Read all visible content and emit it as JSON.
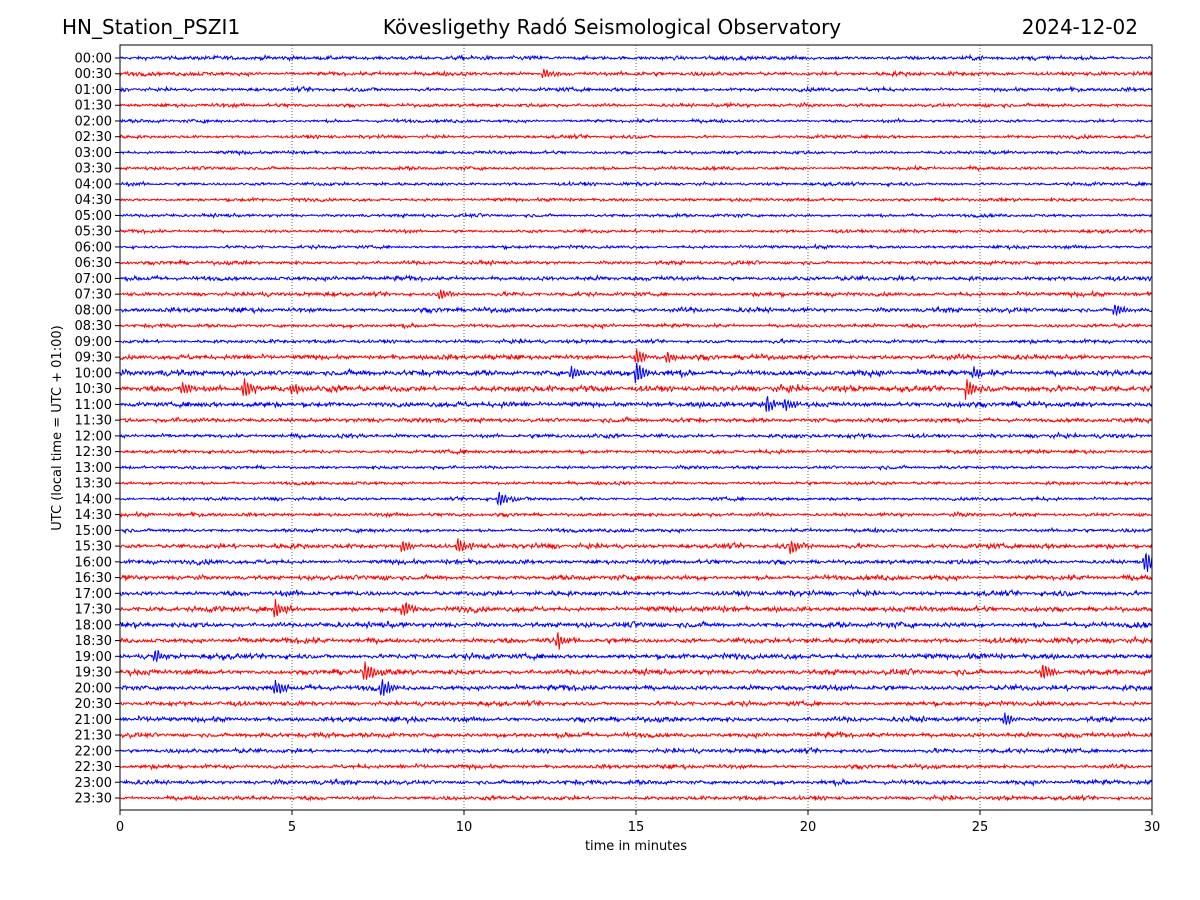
{
  "chart_data": {
    "type": "line",
    "title_left": "HN_Station_PSZI1",
    "title": "Kövesligethy Radó Seismological Observatory",
    "title_right": "2024-12-02",
    "xlabel": "time in minutes",
    "ylabel": "UTC (local time = UTC + 01:00)",
    "xlim": [
      0,
      30
    ],
    "xticks": [
      "0",
      "5",
      "10",
      "15",
      "20",
      "25",
      "30"
    ],
    "grid": "vertical dotted at x ticks",
    "colors": [
      "#0000ff",
      "#ff0000"
    ],
    "rows": [
      "00:00",
      "00:30",
      "01:00",
      "01:30",
      "02:00",
      "02:30",
      "03:00",
      "03:30",
      "04:00",
      "04:30",
      "05:00",
      "05:30",
      "06:00",
      "06:30",
      "07:00",
      "07:30",
      "08:00",
      "08:30",
      "09:00",
      "09:30",
      "10:00",
      "10:30",
      "11:00",
      "11:30",
      "12:00",
      "12:30",
      "13:00",
      "13:30",
      "14:00",
      "14:30",
      "15:00",
      "15:30",
      "16:00",
      "16:30",
      "17:00",
      "17:30",
      "18:00",
      "18:30",
      "19:00",
      "19:30",
      "20:00",
      "20:30",
      "21:00",
      "21:30",
      "22:00",
      "22:30",
      "23:00",
      "23:30"
    ],
    "noise_level": [
      1,
      1,
      0.9,
      0.9,
      0.8,
      0.8,
      0.8,
      0.8,
      0.8,
      0.8,
      0.8,
      0.8,
      0.8,
      0.9,
      1.1,
      1,
      1.1,
      0.9,
      0.9,
      1.2,
      1.4,
      1.5,
      1.3,
      1.1,
      1,
      0.9,
      0.8,
      0.8,
      0.8,
      0.9,
      0.9,
      1.2,
      1.1,
      1.2,
      1.2,
      1.3,
      1.3,
      1.3,
      1.3,
      1.3,
      1.3,
      1.1,
      1.2,
      1.2,
      1.1,
      1,
      1.1,
      1
    ],
    "events": [
      {
        "row": 1,
        "minute": 12.3,
        "amplitude": 2
      },
      {
        "row": 15,
        "minute": 9.3,
        "amplitude": 2
      },
      {
        "row": 16,
        "minute": 28.9,
        "amplitude": 2.5
      },
      {
        "row": 19,
        "minute": 15,
        "amplitude": 3
      },
      {
        "row": 19,
        "minute": 15.9,
        "amplitude": 2
      },
      {
        "row": 20,
        "minute": 15,
        "amplitude": 4.5
      },
      {
        "row": 20,
        "minute": 13.1,
        "amplitude": 2.5
      },
      {
        "row": 20,
        "minute": 24.8,
        "amplitude": 2.5
      },
      {
        "row": 21,
        "minute": 3.6,
        "amplitude": 4
      },
      {
        "row": 21,
        "minute": 24.6,
        "amplitude": 4
      },
      {
        "row": 21,
        "minute": 1.8,
        "amplitude": 2.5
      },
      {
        "row": 21,
        "minute": 5,
        "amplitude": 2.5
      },
      {
        "row": 22,
        "minute": 18.8,
        "amplitude": 3
      },
      {
        "row": 22,
        "minute": 19.3,
        "amplitude": 3
      },
      {
        "row": 28,
        "minute": 11,
        "amplitude": 3
      },
      {
        "row": 31,
        "minute": 9.8,
        "amplitude": 3
      },
      {
        "row": 31,
        "minute": 8.2,
        "amplitude": 2.5
      },
      {
        "row": 31,
        "minute": 19.5,
        "amplitude": 2.5
      },
      {
        "row": 32,
        "minute": 29.8,
        "amplitude": 4
      },
      {
        "row": 35,
        "minute": 4.5,
        "amplitude": 3.5
      },
      {
        "row": 35,
        "minute": 8.2,
        "amplitude": 3
      },
      {
        "row": 37,
        "minute": 12.7,
        "amplitude": 3
      },
      {
        "row": 38,
        "minute": 1,
        "amplitude": 3
      },
      {
        "row": 39,
        "minute": 7.1,
        "amplitude": 4
      },
      {
        "row": 39,
        "minute": 26.8,
        "amplitude": 3.5
      },
      {
        "row": 40,
        "minute": 7.6,
        "amplitude": 3.5
      },
      {
        "row": 40,
        "minute": 4.5,
        "amplitude": 3
      },
      {
        "row": 42,
        "minute": 25.7,
        "amplitude": 2.5
      }
    ]
  }
}
